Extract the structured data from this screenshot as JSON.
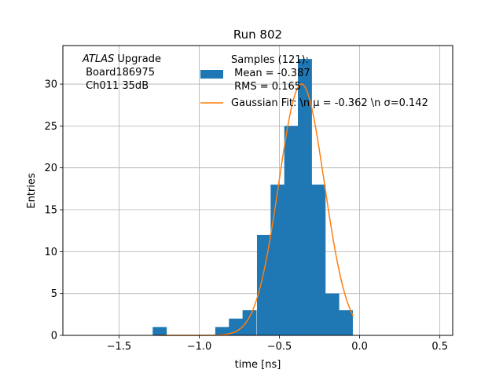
{
  "chart_data": {
    "type": "bar",
    "title": "Run 802",
    "xlabel": "time [ns]",
    "ylabel": "Entries",
    "xlim": [
      -1.85,
      0.58
    ],
    "ylim": [
      0,
      34.6
    ],
    "xticks": [
      -1.5,
      -1.0,
      -0.5,
      0.0,
      0.5
    ],
    "xtick_labels": [
      "−1.5",
      "−1.0",
      "−0.5",
      "0.0",
      "0.5"
    ],
    "yticks": [
      0,
      5,
      10,
      15,
      20,
      25,
      30
    ],
    "grid": true,
    "bin_width": 0.0875,
    "bins": [
      {
        "x0": -1.29,
        "count": 1
      },
      {
        "x0": -0.9,
        "count": 1
      },
      {
        "x0": -0.815,
        "count": 2
      },
      {
        "x0": -0.73,
        "count": 3
      },
      {
        "x0": -0.64,
        "count": 12
      },
      {
        "x0": -0.555,
        "count": 18
      },
      {
        "x0": -0.47,
        "count": 25
      },
      {
        "x0": -0.385,
        "count": 33
      },
      {
        "x0": -0.3,
        "count": 18
      },
      {
        "x0": -0.215,
        "count": 5
      },
      {
        "x0": -0.13,
        "count": 3
      }
    ],
    "fit": {
      "mu": -0.362,
      "sigma": 0.142,
      "amplitude": 30.0,
      "x_range": [
        -1.25,
        -0.04
      ]
    },
    "colors": {
      "bars": "#1f77b4",
      "fit": "#ff7f0e",
      "grid": "#b0b0b0"
    },
    "legend": {
      "placement": "top-right",
      "samples": [
        "Samples (121):",
        " Mean = -0.387",
        " RMS = 0.165"
      ],
      "fit": "Gaussian Fit: \\n μ = -0.362 \\n σ=0.142"
    },
    "annotation": {
      "italic": "ATLAS",
      "rest": " Upgrade",
      "line2": " Board186975",
      "line3": " Ch011 35dB"
    }
  }
}
